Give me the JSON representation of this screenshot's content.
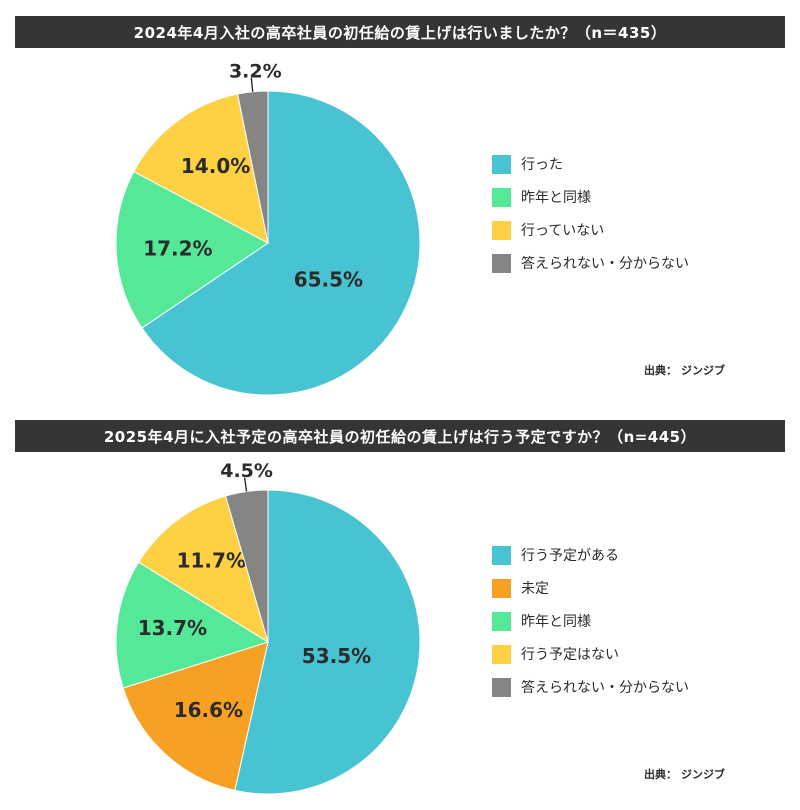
{
  "chart_data": [
    {
      "type": "pie",
      "title": "2024年4月入社の高卒社員の初任給の賃上げは行いましたか？（n＝435）",
      "slices": [
        {
          "label": "行った",
          "value": 65.5,
          "value_label": "65.5%",
          "color": "#48c3d1"
        },
        {
          "label": "昨年と同様",
          "value": 17.2,
          "value_label": "17.2%",
          "color": "#54e898"
        },
        {
          "label": "行っていない",
          "value": 14.0,
          "value_label": "14.0%",
          "color": "#fed044"
        },
        {
          "label": "答えられない・分からない",
          "value": 3.2,
          "value_label": "3.2%",
          "color": "#858585"
        }
      ],
      "legend_position": "right",
      "source_label": "出典：",
      "source_name": "ジンジブ"
    },
    {
      "type": "pie",
      "title": "2025年4月に入社予定の高卒社員の初任給の賃上げは行う予定ですか？（n=445）",
      "slices": [
        {
          "label": "行う予定がある",
          "value": 53.5,
          "value_label": "53.5%",
          "color": "#48c3d1"
        },
        {
          "label": "未定",
          "value": 16.6,
          "value_label": "16.6%",
          "color": "#f6a124"
        },
        {
          "label": "昨年と同様",
          "value": 13.7,
          "value_label": "13.7%",
          "color": "#54e898"
        },
        {
          "label": "行う予定はない",
          "value": 11.7,
          "value_label": "11.7%",
          "color": "#fed044"
        },
        {
          "label": "答えられない・分からない",
          "value": 4.5,
          "value_label": "4.5%",
          "color": "#858585"
        }
      ],
      "legend_position": "right",
      "source_label": "出典：",
      "source_name": "ジンジブ"
    }
  ]
}
